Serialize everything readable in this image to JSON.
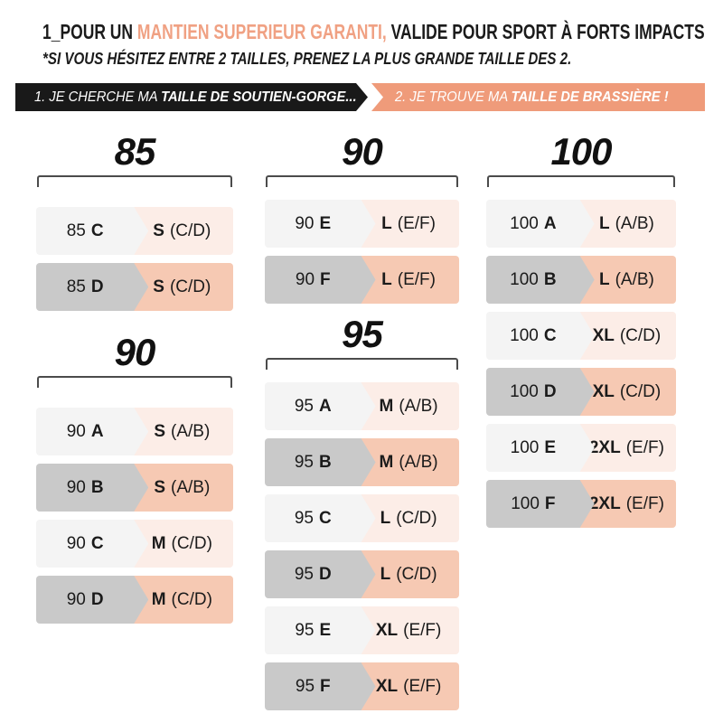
{
  "header": {
    "title_prefix": "1_POUR UN ",
    "title_highlight": "MANTIEN SUPERIEUR GARANTI,",
    "title_suffix": " VALIDE POUR SPORT À FORTS IMPACTS",
    "subtitle": "*SI VOUS HÉSITEZ ENTRE 2 TAILLES, PRENEZ LA PLUS GRANDE TAILLE DES 2."
  },
  "banners": {
    "step1_prefix": "1. JE CHERCHE MA ",
    "step1_bold": "TAILLE DE SOUTIEN-GORGE...",
    "step2_prefix": "2. JE TROUVE MA ",
    "step2_bold": "TAILLE DE BRASSIÈRE !"
  },
  "colors": {
    "accent": "#F0A183",
    "banner": "#EF9B7A",
    "gray-light": "#F4F4F4",
    "gray-dark": "#C9C9C9",
    "peach-light": "#FCEDE7",
    "peach-dark": "#F6C9B3"
  },
  "columns": [
    {
      "groups": [
        {
          "band_size": "85",
          "rows": [
            {
              "band": "85",
              "cup": "C",
              "bra_size": "S",
              "bra_cups": "(C/D)",
              "shade": "light"
            },
            {
              "band": "85",
              "cup": "D",
              "bra_size": "S",
              "bra_cups": "(C/D)",
              "shade": "dark"
            }
          ]
        },
        {
          "band_size": "90",
          "rows": [
            {
              "band": "90",
              "cup": "A",
              "bra_size": "S",
              "bra_cups": "(A/B)",
              "shade": "light"
            },
            {
              "band": "90",
              "cup": "B",
              "bra_size": "S",
              "bra_cups": "(A/B)",
              "shade": "dark"
            },
            {
              "band": "90",
              "cup": "C",
              "bra_size": "M",
              "bra_cups": "(C/D)",
              "shade": "light"
            },
            {
              "band": "90",
              "cup": "D",
              "bra_size": "M",
              "bra_cups": "(C/D)",
              "shade": "dark"
            }
          ]
        }
      ]
    },
    {
      "groups": [
        {
          "band_size": "90",
          "rows": [
            {
              "band": "90",
              "cup": "E",
              "bra_size": "L",
              "bra_cups": "(E/F)",
              "shade": "light"
            },
            {
              "band": "90",
              "cup": "F",
              "bra_size": "L",
              "bra_cups": "(E/F)",
              "shade": "dark"
            }
          ]
        },
        {
          "band_size": "95",
          "rows": [
            {
              "band": "95",
              "cup": "A",
              "bra_size": "M",
              "bra_cups": "(A/B)",
              "shade": "light"
            },
            {
              "band": "95",
              "cup": "B",
              "bra_size": "M",
              "bra_cups": "(A/B)",
              "shade": "dark"
            },
            {
              "band": "95",
              "cup": "C",
              "bra_size": "L",
              "bra_cups": "(C/D)",
              "shade": "light"
            },
            {
              "band": "95",
              "cup": "D",
              "bra_size": "L",
              "bra_cups": "(C/D)",
              "shade": "dark"
            },
            {
              "band": "95",
              "cup": "E",
              "bra_size": "XL",
              "bra_cups": "(E/F)",
              "shade": "light"
            },
            {
              "band": "95",
              "cup": "F",
              "bra_size": "XL",
              "bra_cups": "(E/F)",
              "shade": "dark"
            }
          ]
        }
      ]
    },
    {
      "groups": [
        {
          "band_size": "100",
          "rows": [
            {
              "band": "100",
              "cup": "A",
              "bra_size": "L",
              "bra_cups": "(A/B)",
              "shade": "light"
            },
            {
              "band": "100",
              "cup": "B",
              "bra_size": "L",
              "bra_cups": "(A/B)",
              "shade": "dark"
            },
            {
              "band": "100",
              "cup": "C",
              "bra_size": "XL",
              "bra_cups": "(C/D)",
              "shade": "light"
            },
            {
              "band": "100",
              "cup": "D",
              "bra_size": "XL",
              "bra_cups": "(C/D)",
              "shade": "dark"
            },
            {
              "band": "100",
              "cup": "E",
              "bra_size": "2XL",
              "bra_cups": "(E/F)",
              "shade": "light"
            },
            {
              "band": "100",
              "cup": "F",
              "bra_size": "2XL",
              "bra_cups": "(E/F)",
              "shade": "dark"
            }
          ]
        }
      ]
    }
  ]
}
